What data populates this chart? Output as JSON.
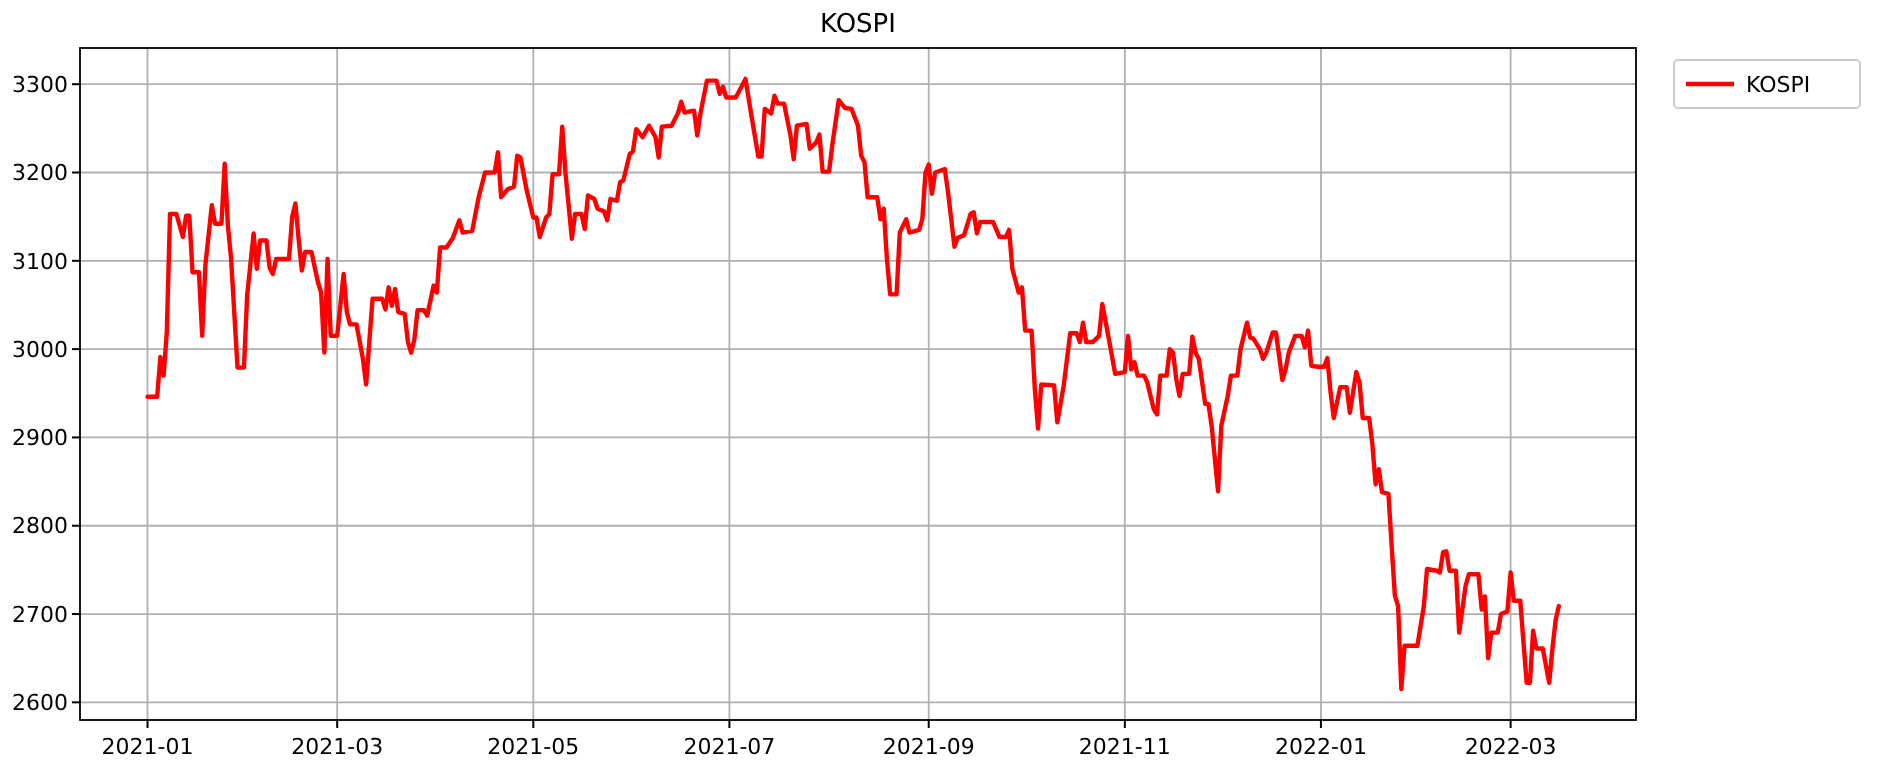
{
  "chart_data": {
    "type": "line",
    "title": "KOSPI",
    "xlim": [
      "2020-12-11",
      "2022-04-09"
    ],
    "xticks": [
      "2021-01",
      "2021-03",
      "2021-05",
      "2021-07",
      "2021-09",
      "2021-11",
      "2022-01",
      "2022-03"
    ],
    "ylim": [
      2580,
      3341
    ],
    "yticks": [
      2600,
      2700,
      2800,
      2900,
      3000,
      3100,
      3200,
      3300
    ],
    "grid": true,
    "legend": "top right",
    "line_style": "solid",
    "marker": "none",
    "series": [
      {
        "name": "KOSPI",
        "color": "#ff0000",
        "x": [
          "2021-01-01",
          "2021-01-04",
          "2021-01-05",
          "2021-01-06",
          "2021-01-07",
          "2021-01-08",
          "2021-01-10",
          "2021-01-12",
          "2021-01-13",
          "2021-01-14",
          "2021-01-15",
          "2021-01-17",
          "2021-01-18",
          "2021-01-19",
          "2021-01-21",
          "2021-01-22",
          "2021-01-24",
          "2021-01-25",
          "2021-01-26",
          "2021-01-27",
          "2021-01-29",
          "2021-01-31",
          "2021-02-01",
          "2021-02-03",
          "2021-02-04",
          "2021-02-05",
          "2021-02-07",
          "2021-02-08",
          "2021-02-09",
          "2021-02-10",
          "2021-02-14",
          "2021-02-15",
          "2021-02-16",
          "2021-02-17",
          "2021-02-18",
          "2021-02-19",
          "2021-02-21",
          "2021-02-23",
          "2021-02-24",
          "2021-02-25",
          "2021-02-26",
          "2021-02-27",
          "2021-03-01",
          "2021-03-03",
          "2021-03-04",
          "2021-03-05",
          "2021-03-07",
          "2021-03-09",
          "2021-03-10",
          "2021-03-12",
          "2021-03-15",
          "2021-03-16",
          "2021-03-17",
          "2021-03-18",
          "2021-03-19",
          "2021-03-20",
          "2021-03-22",
          "2021-03-23",
          "2021-03-24",
          "2021-03-25",
          "2021-03-26",
          "2021-03-28",
          "2021-03-29",
          "2021-03-31",
          "2021-04-01",
          "2021-04-02",
          "2021-04-04",
          "2021-04-06",
          "2021-04-08",
          "2021-04-09",
          "2021-04-12",
          "2021-04-14",
          "2021-04-16",
          "2021-04-19",
          "2021-04-20",
          "2021-04-21",
          "2021-04-23",
          "2021-04-25",
          "2021-04-26",
          "2021-04-27",
          "2021-04-29",
          "2021-05-01",
          "2021-05-02",
          "2021-05-03",
          "2021-05-05",
          "2021-05-06",
          "2021-05-07",
          "2021-05-09",
          "2021-05-10",
          "2021-05-11",
          "2021-05-13",
          "2021-05-14",
          "2021-05-16",
          "2021-05-17",
          "2021-05-18",
          "2021-05-20",
          "2021-05-21",
          "2021-05-23",
          "2021-05-24",
          "2021-05-25",
          "2021-05-27",
          "2021-05-28",
          "2021-05-29",
          "2021-05-31",
          "2021-06-01",
          "2021-06-02",
          "2021-06-04",
          "2021-06-06",
          "2021-06-08",
          "2021-06-09",
          "2021-06-10",
          "2021-06-13",
          "2021-06-15",
          "2021-06-16",
          "2021-06-17",
          "2021-06-20",
          "2021-06-21",
          "2021-06-22",
          "2021-06-24",
          "2021-06-27",
          "2021-06-28",
          "2021-06-29",
          "2021-06-30",
          "2021-07-03",
          "2021-07-06",
          "2021-07-08",
          "2021-07-10",
          "2021-07-11",
          "2021-07-12",
          "2021-07-14",
          "2021-07-15",
          "2021-07-16",
          "2021-07-18",
          "2021-07-20",
          "2021-07-21",
          "2021-07-22",
          "2021-07-25",
          "2021-07-26",
          "2021-07-28",
          "2021-07-29",
          "2021-07-30",
          "2021-08-01",
          "2021-08-02",
          "2021-08-04",
          "2021-08-06",
          "2021-08-08",
          "2021-08-10",
          "2021-08-11",
          "2021-08-12",
          "2021-08-13",
          "2021-08-16",
          "2021-08-17",
          "2021-08-18",
          "2021-08-19",
          "2021-08-20",
          "2021-08-22",
          "2021-08-23",
          "2021-08-25",
          "2021-08-26",
          "2021-08-29",
          "2021-08-30",
          "2021-08-31",
          "2021-09-01",
          "2021-09-02",
          "2021-09-03",
          "2021-09-06",
          "2021-09-07",
          "2021-09-08",
          "2021-09-09",
          "2021-09-10",
          "2021-09-12",
          "2021-09-14",
          "2021-09-15",
          "2021-09-16",
          "2021-09-17",
          "2021-09-21",
          "2021-09-23",
          "2021-09-25",
          "2021-09-26",
          "2021-09-27",
          "2021-09-29",
          "2021-09-30",
          "2021-10-01",
          "2021-10-03",
          "2021-10-04",
          "2021-10-05",
          "2021-10-06",
          "2021-10-10",
          "2021-10-11",
          "2021-10-13",
          "2021-10-15",
          "2021-10-17",
          "2021-10-18",
          "2021-10-19",
          "2021-10-20",
          "2021-10-22",
          "2021-10-24",
          "2021-10-25",
          "2021-10-27",
          "2021-10-29",
          "2021-11-01",
          "2021-11-02",
          "2021-11-03",
          "2021-11-04",
          "2021-11-05",
          "2021-11-07",
          "2021-11-08",
          "2021-11-10",
          "2021-11-11",
          "2021-11-12",
          "2021-11-14",
          "2021-11-15",
          "2021-11-16",
          "2021-11-17",
          "2021-11-18",
          "2021-11-19",
          "2021-11-21",
          "2021-11-22",
          "2021-11-23",
          "2021-11-24",
          "2021-11-26",
          "2021-11-27",
          "2021-11-28",
          "2021-11-30",
          "2021-12-01",
          "2021-12-03",
          "2021-12-04",
          "2021-12-06",
          "2021-12-07",
          "2021-12-09",
          "2021-12-10",
          "2021-12-11",
          "2021-12-13",
          "2021-12-14",
          "2021-12-15",
          "2021-12-17",
          "2021-12-18",
          "2021-12-20",
          "2021-12-21",
          "2021-12-22",
          "2021-12-24",
          "2021-12-26",
          "2021-12-27",
          "2021-12-28",
          "2021-12-29",
          "2021-12-31",
          "2022-01-02",
          "2022-01-03",
          "2022-01-04",
          "2022-01-05",
          "2022-01-07",
          "2022-01-09",
          "2022-01-10",
          "2022-01-12",
          "2022-01-13",
          "2022-01-14",
          "2022-01-16",
          "2022-01-17",
          "2022-01-18",
          "2022-01-19",
          "2022-01-20",
          "2022-01-22",
          "2022-01-23",
          "2022-01-24",
          "2022-01-25",
          "2022-01-26",
          "2022-01-27",
          "2022-01-31",
          "2022-02-02",
          "2022-02-03",
          "2022-02-06",
          "2022-02-07",
          "2022-02-08",
          "2022-02-09",
          "2022-02-10",
          "2022-02-12",
          "2022-02-13",
          "2022-02-15",
          "2022-02-16",
          "2022-02-19",
          "2022-02-20",
          "2022-02-21",
          "2022-02-22",
          "2022-02-23",
          "2022-02-25",
          "2022-02-26",
          "2022-02-28",
          "2022-03-01",
          "2022-03-02",
          "2022-03-04",
          "2022-03-05",
          "2022-03-06",
          "2022-03-07",
          "2022-03-08",
          "2022-03-09",
          "2022-03-11",
          "2022-03-13",
          "2022-03-14",
          "2022-03-15",
          "2022-03-16"
        ],
        "values": [
          2946,
          2946,
          2991,
          2970,
          3019,
          3153,
          3153,
          3127,
          3151,
          3151,
          3087,
          3087,
          3015,
          3095,
          3163,
          3142,
          3142,
          3210,
          3140,
          3102,
          2979,
          2979,
          3061,
          3131,
          3091,
          3123,
          3123,
          3092,
          3085,
          3102,
          3102,
          3150,
          3165,
          3125,
          3089,
          3110,
          3110,
          3076,
          3064,
          2996,
          3102,
          3015,
          3015,
          3085,
          3042,
          3028,
          3028,
          2989,
          2960,
          3057,
          3057,
          3045,
          3070,
          3049,
          3068,
          3042,
          3040,
          3008,
          2996,
          3011,
          3044,
          3044,
          3038,
          3072,
          3064,
          3115,
          3115,
          3126,
          3146,
          3132,
          3134,
          3172,
          3200,
          3200,
          3223,
          3172,
          3181,
          3184,
          3219,
          3217,
          3179,
          3149,
          3149,
          3127,
          3149,
          3153,
          3198,
          3198,
          3252,
          3200,
          3125,
          3153,
          3153,
          3136,
          3174,
          3170,
          3159,
          3156,
          3146,
          3170,
          3168,
          3189,
          3191,
          3221,
          3224,
          3249,
          3240,
          3253,
          3240,
          3217,
          3252,
          3253,
          3267,
          3280,
          3268,
          3270,
          3242,
          3267,
          3304,
          3304,
          3289,
          3297,
          3285,
          3285,
          3306,
          3261,
          3218,
          3218,
          3272,
          3267,
          3287,
          3278,
          3278,
          3242,
          3215,
          3253,
          3255,
          3227,
          3234,
          3243,
          3201,
          3201,
          3231,
          3282,
          3273,
          3272,
          3253,
          3219,
          3212,
          3172,
          3172,
          3147,
          3159,
          3102,
          3062,
          3062,
          3132,
          3147,
          3132,
          3135,
          3147,
          3200,
          3209,
          3176,
          3200,
          3204,
          3178,
          3147,
          3116,
          3126,
          3129,
          3153,
          3155,
          3131,
          3144,
          3144,
          3127,
          3127,
          3135,
          3091,
          3064,
          3070,
          3021,
          3021,
          2955,
          2910,
          2960,
          2959,
          2917,
          2959,
          3018,
          3018,
          3008,
          3030,
          3008,
          3008,
          3015,
          3051,
          3012,
          2972,
          2974,
          3015,
          2977,
          2985,
          2970,
          2970,
          2962,
          2932,
          2926,
          2970,
          2970,
          3000,
          2996,
          2966,
          2947,
          2972,
          2972,
          3014,
          2996,
          2989,
          2938,
          2938,
          2913,
          2839,
          2913,
          2947,
          2970,
          2970,
          3000,
          3030,
          3013,
          3012,
          3000,
          2989,
          2996,
          3019,
          3019,
          2965,
          2977,
          2996,
          3015,
          3015,
          3002,
          3021,
          2981,
          2980,
          2980,
          2990,
          2951,
          2922,
          2957,
          2957,
          2928,
          2974,
          2962,
          2922,
          2922,
          2892,
          2847,
          2864,
          2838,
          2836,
          2777,
          2721,
          2709,
          2615,
          2664,
          2664,
          2709,
          2751,
          2749,
          2747,
          2770,
          2771,
          2749,
          2749,
          2679,
          2732,
          2745,
          2745,
          2705,
          2720,
          2650,
          2679,
          2679,
          2700,
          2703,
          2747,
          2715,
          2715,
          2668,
          2622,
          2622,
          2681,
          2661,
          2661,
          2622,
          2661,
          2693,
          2709
        ]
      }
    ]
  }
}
